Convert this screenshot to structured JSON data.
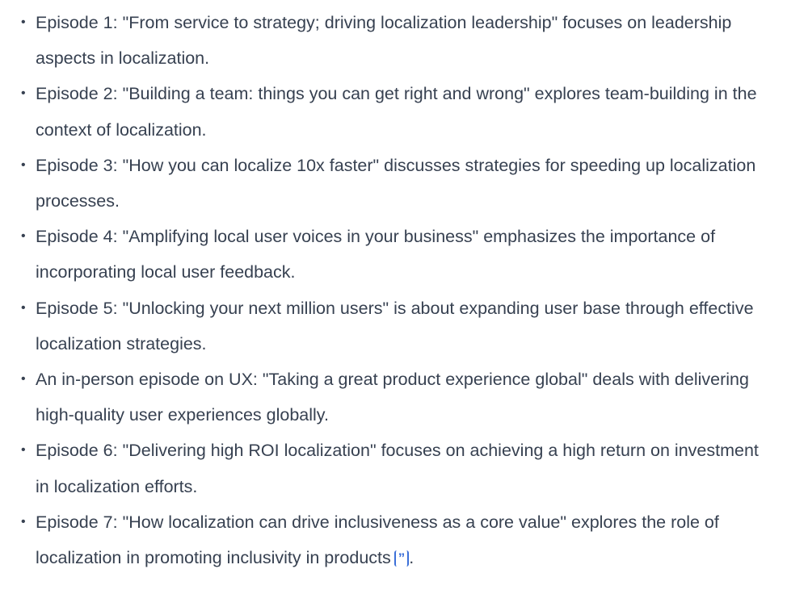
{
  "items": [
    {
      "text": "Episode 1: \"From service to strategy; driving localization leadership\" focuses on leadership aspects in localization."
    },
    {
      "text": "Episode 2: \"Building a team: things you can get right and wrong\" explores team-building in the context of localization."
    },
    {
      "text": "Episode 3: \"How you can localize 10x faster\" discusses strategies for speeding up localization processes."
    },
    {
      "text": "Episode 4: \"Amplifying local user voices in your business\" emphasizes the importance of incorporating local user feedback."
    },
    {
      "text": "Episode 5: \"Unlocking your next million users\" is about expanding user base through effective localization strategies."
    },
    {
      "text": "An in-person episode on UX: \"Taking a great product experience global\" deals with delivering high-quality user experiences globally."
    },
    {
      "text": "Episode 6: \"Delivering high ROI localization\" focuses on achieving a high return on investment in localization efforts."
    },
    {
      "text": "Episode 7: \"How localization can drive inclusiveness as a core value\" explores the role of localization in promoting inclusivity in products",
      "citation": "”",
      "end": "."
    }
  ],
  "bullet": "•",
  "colors": {
    "text": "#374151",
    "citation": "#3b6fd8"
  }
}
